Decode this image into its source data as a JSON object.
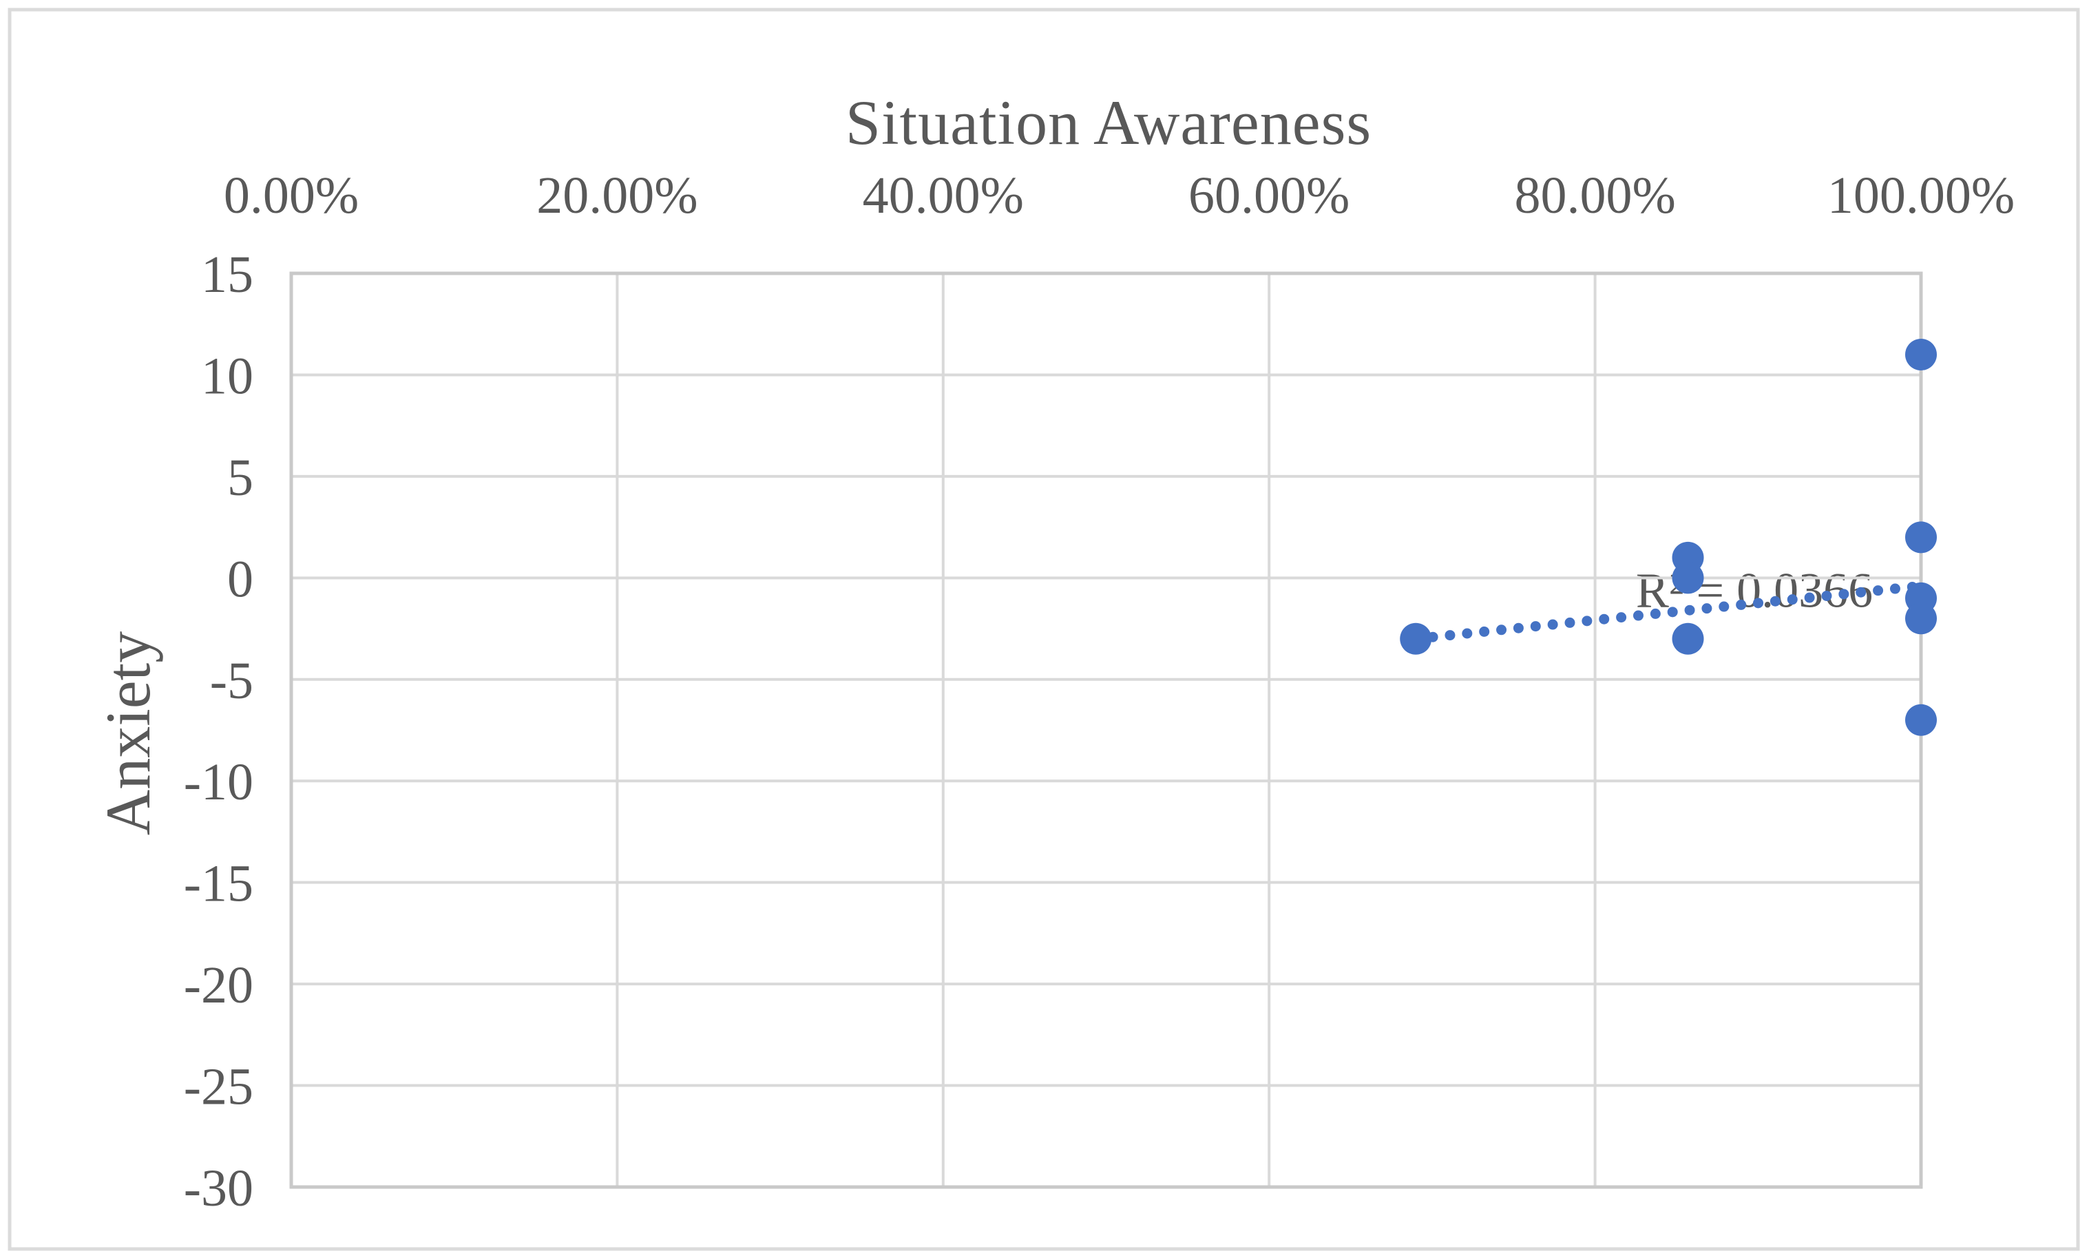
{
  "chart": {
    "title": "Situation Awareness",
    "y_axis_title": "Anxiety",
    "trendline_label": "R² = 0.0366"
  },
  "chart_data": {
    "type": "scatter",
    "title": "Situation Awareness",
    "xlabel": "Situation Awareness",
    "ylabel": "Anxiety",
    "xlim": [
      0,
      1.0
    ],
    "ylim": [
      -30,
      15
    ],
    "grid": true,
    "legend": "none",
    "x_ticks": [
      {
        "value": 0.0,
        "label": "0.00%"
      },
      {
        "value": 0.2,
        "label": "20.00%"
      },
      {
        "value": 0.4,
        "label": "40.00%"
      },
      {
        "value": 0.6,
        "label": "60.00%"
      },
      {
        "value": 0.8,
        "label": "80.00%"
      },
      {
        "value": 1.0,
        "label": "100.00%"
      }
    ],
    "y_ticks": [
      {
        "value": 15,
        "label": "15"
      },
      {
        "value": 10,
        "label": "10"
      },
      {
        "value": 5,
        "label": "5"
      },
      {
        "value": 0,
        "label": "0"
      },
      {
        "value": -5,
        "label": "-5"
      },
      {
        "value": -10,
        "label": "-10"
      },
      {
        "value": -15,
        "label": "-15"
      },
      {
        "value": -20,
        "label": "-20"
      },
      {
        "value": -25,
        "label": "-25"
      },
      {
        "value": -30,
        "label": "-30"
      }
    ],
    "points": [
      {
        "x": 0.69,
        "y": -3
      },
      {
        "x": 0.857,
        "y": 1
      },
      {
        "x": 0.857,
        "y": 0
      },
      {
        "x": 0.857,
        "y": -3
      },
      {
        "x": 1.0,
        "y": 11
      },
      {
        "x": 1.0,
        "y": 2
      },
      {
        "x": 1.0,
        "y": -1
      },
      {
        "x": 1.0,
        "y": -2
      },
      {
        "x": 1.0,
        "y": -7
      }
    ],
    "trendline": {
      "style": "dotted",
      "r_squared": 0.0366,
      "r_squared_label": "R² = 0.0366",
      "start": {
        "x": 0.69,
        "y": -3.0
      },
      "end": {
        "x": 1.0,
        "y": -0.4
      }
    },
    "colors": {
      "marker": "#4472C4",
      "trendline": "#4472C4",
      "gridline": "#D9D9D9",
      "plot_border": "#C9C9C9",
      "figure_border": "#DBDBDB",
      "text": "#595959"
    }
  }
}
